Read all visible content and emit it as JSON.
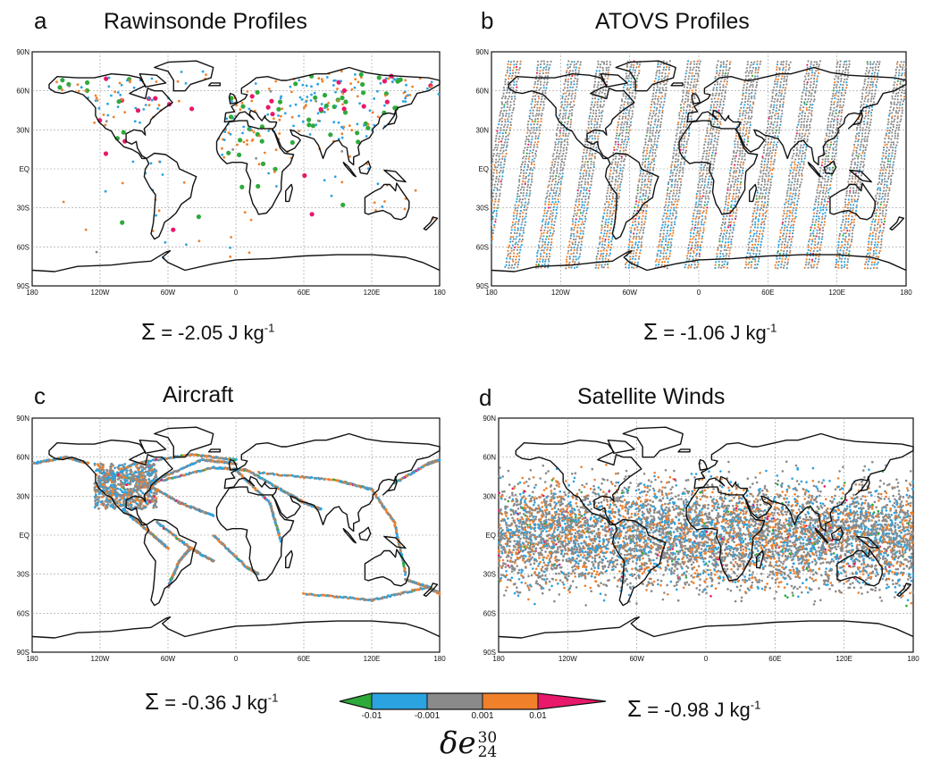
{
  "panels": [
    {
      "letter": "a",
      "title": "Rawinsonde Profiles",
      "sum_value": "-2.05",
      "density": "sparse"
    },
    {
      "letter": "b",
      "title": "ATOVS Profiles",
      "sum_value": "-1.06",
      "density": "dense-swath"
    },
    {
      "letter": "c",
      "title": "Aircraft",
      "sum_value": "-0.36",
      "density": "tracks"
    },
    {
      "letter": "d",
      "title": "Satellite Winds",
      "sum_value": "-0.98",
      "density": "dense-tropics"
    }
  ],
  "sum_symbol": "Σ",
  "sum_unit": "J kg",
  "sum_unit_exp": "-1",
  "lat_ticks": [
    "90N",
    "60N",
    "30N",
    "EQ",
    "30S",
    "60S",
    "90S"
  ],
  "lon_ticks": [
    "180",
    "120W",
    "60W",
    "0",
    "60E",
    "120E",
    "180"
  ],
  "colorbar": {
    "labels": [
      "-0.01",
      "-0.001",
      "0.001",
      "0.01"
    ],
    "colors": [
      "#2eaa3a",
      "#2aa3e0",
      "#8a8a8a",
      "#f0802a",
      "#e8186a"
    ]
  },
  "variable": {
    "base": "δe",
    "sup": "30",
    "sub": "24"
  },
  "map_colors": {
    "coast": "#111111",
    "grid": "#9a9a9a"
  }
}
